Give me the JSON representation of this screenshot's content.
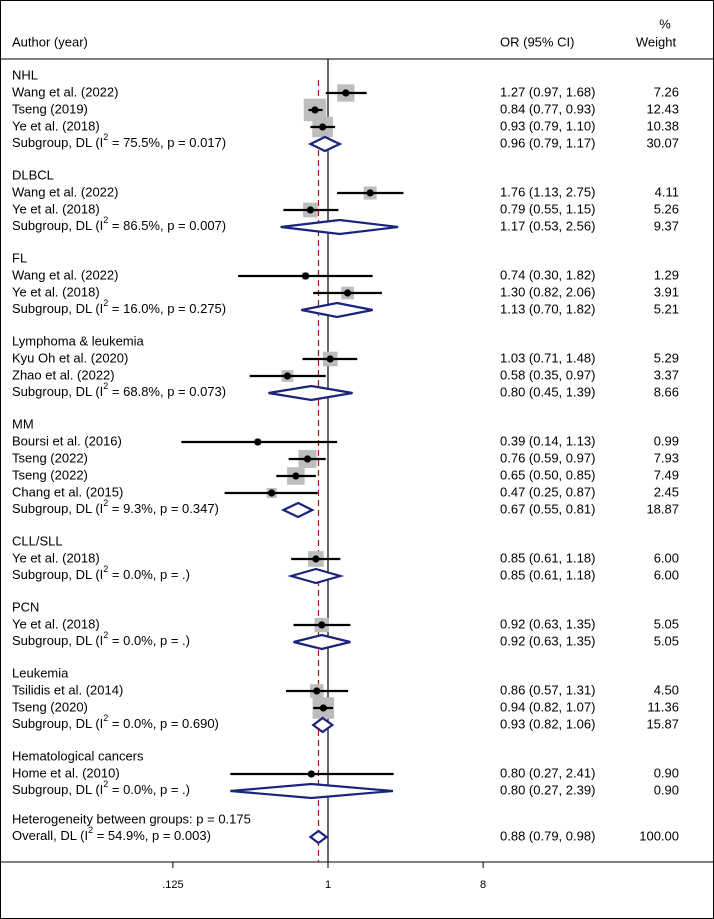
{
  "chart_data": {
    "type": "forest",
    "scale": "log",
    "headers": {
      "author": "Author (year)",
      "ci": "OR (95% CI)",
      "weight_top": "%",
      "weight_bottom": "Weight"
    },
    "x_ticks": [
      {
        "value": 0.125,
        "label": ".125"
      },
      {
        "value": 1,
        "label": "1"
      },
      {
        "value": 8,
        "label": "8"
      }
    ],
    "overall_or": 0.88,
    "groups": [
      {
        "name": "NHL",
        "studies": [
          {
            "label": "Wang et al. (2022)",
            "or": 1.27,
            "lo": 0.97,
            "hi": 1.68,
            "ci_text": "1.27 (0.97, 1.68)",
            "weight": 7.26,
            "weight_text": "7.26"
          },
          {
            "label": "Tseng (2019)",
            "or": 0.84,
            "lo": 0.77,
            "hi": 0.93,
            "ci_text": "0.84 (0.77, 0.93)",
            "weight": 12.43,
            "weight_text": "12.43"
          },
          {
            "label": "Ye et al. (2018)",
            "or": 0.93,
            "lo": 0.79,
            "hi": 1.1,
            "ci_text": "0.93 (0.79, 1.10)",
            "weight": 10.38,
            "weight_text": "10.38"
          }
        ],
        "subgroup": {
          "label_pre": "Subgroup, DL (I",
          "sup": "2",
          "label_post": " = 75.5%, p = 0.017)",
          "or": 0.96,
          "lo": 0.79,
          "hi": 1.17,
          "ci_text": "0.96 (0.79, 1.17)",
          "weight_text": "30.07"
        }
      },
      {
        "name": "DLBCL",
        "studies": [
          {
            "label": "Wang et al. (2022)",
            "or": 1.76,
            "lo": 1.13,
            "hi": 2.75,
            "ci_text": "1.76 (1.13, 2.75)",
            "weight": 4.11,
            "weight_text": "4.11"
          },
          {
            "label": "Ye et al. (2018)",
            "or": 0.79,
            "lo": 0.55,
            "hi": 1.15,
            "ci_text": "0.79 (0.55, 1.15)",
            "weight": 5.26,
            "weight_text": "5.26"
          }
        ],
        "subgroup": {
          "label_pre": "Subgroup, DL (I",
          "sup": "2",
          "label_post": " = 86.5%, p = 0.007)",
          "or": 1.17,
          "lo": 0.53,
          "hi": 2.56,
          "ci_text": "1.17 (0.53, 2.56)",
          "weight_text": "9.37"
        }
      },
      {
        "name": "FL",
        "studies": [
          {
            "label": "Wang et al. (2022)",
            "or": 0.74,
            "lo": 0.3,
            "hi": 1.82,
            "ci_text": "0.74 (0.30, 1.82)",
            "weight": 1.29,
            "weight_text": "1.29"
          },
          {
            "label": "Ye et al. (2018)",
            "or": 1.3,
            "lo": 0.82,
            "hi": 2.06,
            "ci_text": "1.30 (0.82, 2.06)",
            "weight": 3.91,
            "weight_text": "3.91"
          }
        ],
        "subgroup": {
          "label_pre": "Subgroup, DL (I",
          "sup": "2",
          "label_post": " = 16.0%, p = 0.275)",
          "or": 1.13,
          "lo": 0.7,
          "hi": 1.82,
          "ci_text": "1.13 (0.70, 1.82)",
          "weight_text": "5.21"
        }
      },
      {
        "name": "Lymphoma & leukemia",
        "studies": [
          {
            "label": "Kyu Oh et al. (2020)",
            "or": 1.03,
            "lo": 0.71,
            "hi": 1.48,
            "ci_text": "1.03 (0.71, 1.48)",
            "weight": 5.29,
            "weight_text": "5.29"
          },
          {
            "label": "Zhao et al. (2022)",
            "or": 0.58,
            "lo": 0.35,
            "hi": 0.97,
            "ci_text": "0.58 (0.35, 0.97)",
            "weight": 3.37,
            "weight_text": "3.37"
          }
        ],
        "subgroup": {
          "label_pre": "Subgroup, DL (I",
          "sup": "2",
          "label_post": " = 68.8%, p = 0.073)",
          "or": 0.8,
          "lo": 0.45,
          "hi": 1.39,
          "ci_text": "0.80 (0.45, 1.39)",
          "weight_text": "8.66"
        }
      },
      {
        "name": "MM",
        "studies": [
          {
            "label": "Boursi et al. (2016)",
            "or": 0.39,
            "lo": 0.14,
            "hi": 1.13,
            "ci_text": "0.39 (0.14, 1.13)",
            "weight": 0.99,
            "weight_text": "0.99"
          },
          {
            "label": "Tseng (2022)",
            "or": 0.76,
            "lo": 0.59,
            "hi": 0.97,
            "ci_text": "0.76 (0.59, 0.97)",
            "weight": 7.93,
            "weight_text": "7.93"
          },
          {
            "label": "Tseng (2022)",
            "or": 0.65,
            "lo": 0.5,
            "hi": 0.85,
            "ci_text": "0.65 (0.50, 0.85)",
            "weight": 7.49,
            "weight_text": "7.49"
          },
          {
            "label": "Chang et al. (2015)",
            "or": 0.47,
            "lo": 0.25,
            "hi": 0.87,
            "ci_text": "0.47 (0.25, 0.87)",
            "weight": 2.45,
            "weight_text": "2.45"
          }
        ],
        "subgroup": {
          "label_pre": "Subgroup, DL (I",
          "sup": "2",
          "label_post": " = 9.3%, p = 0.347)",
          "or": 0.67,
          "lo": 0.55,
          "hi": 0.81,
          "ci_text": "0.67 (0.55, 0.81)",
          "weight_text": "18.87"
        }
      },
      {
        "name": "CLL/SLL",
        "studies": [
          {
            "label": "Ye et al. (2018)",
            "or": 0.85,
            "lo": 0.61,
            "hi": 1.18,
            "ci_text": "0.85 (0.61, 1.18)",
            "weight": 6.0,
            "weight_text": "6.00"
          }
        ],
        "subgroup": {
          "label_pre": "Subgroup, DL (I",
          "sup": "2",
          "label_post": " = 0.0%, p = .)",
          "or": 0.85,
          "lo": 0.61,
          "hi": 1.18,
          "ci_text": "0.85 (0.61, 1.18)",
          "weight_text": "6.00"
        }
      },
      {
        "name": "PCN",
        "studies": [
          {
            "label": "Ye et al. (2018)",
            "or": 0.92,
            "lo": 0.63,
            "hi": 1.35,
            "ci_text": "0.92 (0.63, 1.35)",
            "weight": 5.05,
            "weight_text": "5.05"
          }
        ],
        "subgroup": {
          "label_pre": "Subgroup, DL (I",
          "sup": "2",
          "label_post": " = 0.0%, p = .)",
          "or": 0.92,
          "lo": 0.63,
          "hi": 1.35,
          "ci_text": "0.92 (0.63, 1.35)",
          "weight_text": "5.05"
        }
      },
      {
        "name": "Leukemia",
        "studies": [
          {
            "label": "Tsilidis et al. (2014)",
            "or": 0.86,
            "lo": 0.57,
            "hi": 1.31,
            "ci_text": "0.86 (0.57, 1.31)",
            "weight": 4.5,
            "weight_text": "4.50"
          },
          {
            "label": "Tseng (2020)",
            "or": 0.94,
            "lo": 0.82,
            "hi": 1.07,
            "ci_text": "0.94 (0.82, 1.07)",
            "weight": 11.36,
            "weight_text": "11.36"
          }
        ],
        "subgroup": {
          "label_pre": "Subgroup, DL (I",
          "sup": "2",
          "label_post": " = 0.0%, p = 0.690)",
          "or": 0.93,
          "lo": 0.82,
          "hi": 1.06,
          "ci_text": "0.93 (0.82, 1.06)",
          "weight_text": "15.87"
        }
      },
      {
        "name": "Hematological cancers",
        "studies": [
          {
            "label": "Home et al. (2010)",
            "or": 0.8,
            "lo": 0.27,
            "hi": 2.41,
            "ci_text": "0.80 (0.27, 2.41)",
            "weight": 0.9,
            "weight_text": "0.90"
          }
        ],
        "subgroup": {
          "label_pre": "Subgroup, DL (I",
          "sup": "2",
          "label_post": " = 0.0%, p = .)",
          "or": 0.8,
          "lo": 0.27,
          "hi": 2.39,
          "ci_text": "0.80 (0.27, 2.39)",
          "weight_text": "0.90"
        }
      }
    ],
    "heterogeneity": "Heterogeneity between groups: p = 0.175",
    "overall": {
      "label_pre": "Overall, DL (I",
      "sup": "2",
      "label_post": " = 54.9%, p = 0.003)",
      "or": 0.88,
      "lo": 0.79,
      "hi": 0.98,
      "ci_text": "0.88 (0.79, 0.98)",
      "weight_text": "100.00"
    },
    "colors": {
      "diamond": "#1a237e",
      "box": "#bdbdbd",
      "ci_line": "#000000",
      "ref_line": "#000000",
      "overall_line": "#a31515",
      "border": "#000000"
    }
  }
}
